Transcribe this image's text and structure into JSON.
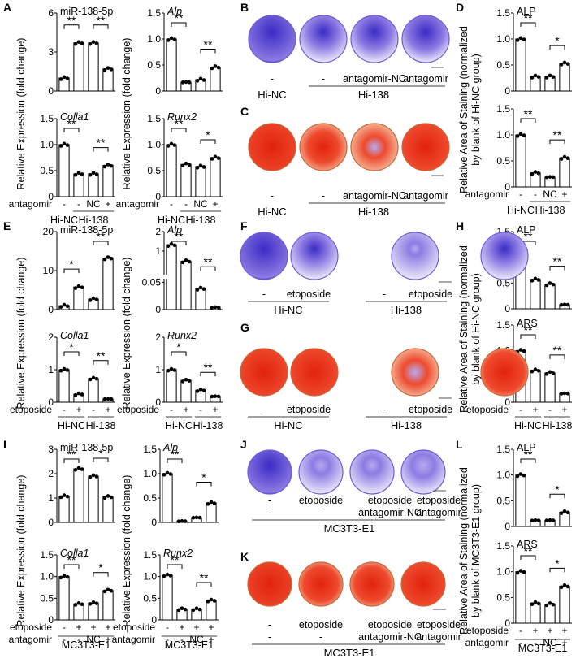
{
  "figure": {
    "panels": {
      "A": "A",
      "B": "B",
      "C": "C",
      "D": "D",
      "E": "E",
      "F": "F",
      "G": "G",
      "H": "H",
      "I": "I",
      "J": "J",
      "K": "K",
      "L": "L"
    },
    "ylabels": {
      "expression": "Relative Expression (fold change)",
      "staining_hinc_1": "Relative Area of Staining (normalized",
      "staining_hinc_2": "by blank of Hi-NC group)",
      "staining_mc3t3_1": "Relative Area of Staining (normalized",
      "staining_mc3t3_2": "by blank of MC3T3-E1 group)"
    },
    "colors": {
      "bar_fill": "#ffffff",
      "bar_stroke": "#000000",
      "alp_stain": "#5a3fd0",
      "ars_stain": "#e8321e",
      "ars_stain_light": "#f2c9a8"
    }
  },
  "chart_data": [
    {
      "panel": "A",
      "type": "bar",
      "title": "miR-138-5p",
      "ylim": [
        0,
        6
      ],
      "yticks": [
        "0",
        "3",
        "6"
      ],
      "categories": [
        "Hi-NC -",
        "Hi-138 -",
        "Hi-138 NC",
        "Hi-138 +"
      ],
      "values": [
        1.0,
        3.7,
        3.7,
        1.7
      ],
      "sig": [
        {
          "from": 0,
          "to": 1,
          "label": "**"
        },
        {
          "from": 2,
          "to": 3,
          "label": "**"
        }
      ]
    },
    {
      "panel": "A",
      "type": "bar",
      "title": "Alp",
      "ylim": [
        0,
        1.5
      ],
      "yticks": [
        "0",
        "0.5",
        "1.0",
        "1.5"
      ],
      "categories": [
        "Hi-NC -",
        "Hi-138 -",
        "Hi-138 NC",
        "Hi-138 +"
      ],
      "values": [
        1.0,
        0.17,
        0.22,
        0.46
      ],
      "sig": [
        {
          "from": 0,
          "to": 1,
          "label": "**"
        },
        {
          "from": 2,
          "to": 3,
          "label": "**"
        }
      ]
    },
    {
      "panel": "A",
      "type": "bar",
      "title": "Colla1",
      "ylim": [
        0,
        1.5
      ],
      "yticks": [
        "0",
        "0.5",
        "1.0",
        "1.5"
      ],
      "categories": [
        "Hi-NC -",
        "Hi-138 -",
        "Hi-138 NC",
        "Hi-138 +"
      ],
      "values": [
        1.0,
        0.44,
        0.44,
        0.6
      ],
      "sig": [
        {
          "from": 0,
          "to": 1,
          "label": "**"
        },
        {
          "from": 2,
          "to": 3,
          "label": "**"
        }
      ],
      "xrow": {
        "label": "antagomir",
        "values": [
          "-",
          "-",
          "NC",
          "+"
        ]
      },
      "groups": [
        {
          "label": "Hi-NC",
          "from": 0,
          "to": 0
        },
        {
          "label": "Hi-138",
          "from": 1,
          "to": 3
        }
      ]
    },
    {
      "panel": "A",
      "type": "bar",
      "title": "Runx2",
      "ylim": [
        0,
        1.5
      ],
      "yticks": [
        "0",
        "0.5",
        "1.0",
        "1.5"
      ],
      "categories": [
        "Hi-NC -",
        "Hi-138 -",
        "Hi-138 NC",
        "Hi-138 +"
      ],
      "values": [
        1.0,
        0.62,
        0.58,
        0.75
      ],
      "sig": [
        {
          "from": 0,
          "to": 1,
          "label": "**"
        },
        {
          "from": 2,
          "to": 3,
          "label": "*"
        }
      ],
      "xrow": {
        "label": "antagomir",
        "values": [
          "-",
          "-",
          "NC",
          "+"
        ]
      },
      "groups": [
        {
          "label": "Hi-NC",
          "from": 0,
          "to": 0
        },
        {
          "label": "Hi-138",
          "from": 1,
          "to": 3
        }
      ]
    },
    {
      "panel": "D",
      "type": "bar",
      "title": "ALP",
      "ylim": [
        0,
        1.5
      ],
      "yticks": [
        "0",
        "0.5",
        "1.0",
        "1.5"
      ],
      "categories": [
        "Hi-NC -",
        "Hi-138 -",
        "Hi-138 NC",
        "Hi-138 +"
      ],
      "values": [
        1.0,
        0.28,
        0.28,
        0.53
      ],
      "sig": [
        {
          "from": 0,
          "to": 1,
          "label": "**"
        },
        {
          "from": 2,
          "to": 3,
          "label": "*"
        }
      ]
    },
    {
      "panel": "D",
      "type": "bar",
      "title": "",
      "ylim": [
        0,
        1.5
      ],
      "yticks": [
        "0",
        "0.5",
        "1.0",
        "1.5"
      ],
      "categories": [
        "Hi-NC -",
        "Hi-138 -",
        "Hi-138 NC",
        "Hi-138 +"
      ],
      "values": [
        1.0,
        0.27,
        0.19,
        0.56
      ],
      "sig": [
        {
          "from": 0,
          "to": 1,
          "label": "**"
        },
        {
          "from": 2,
          "to": 3,
          "label": "**"
        }
      ],
      "xrow": {
        "label": "antagomir",
        "values": [
          "-",
          "-",
          "NC",
          "+"
        ]
      },
      "groups": [
        {
          "label": "Hi-NC",
          "from": 0,
          "to": 0
        },
        {
          "label": "Hi-138",
          "from": 1,
          "to": 3
        }
      ]
    },
    {
      "panel": "E",
      "type": "bar",
      "title": "miR-138-5p",
      "ylim": [
        0,
        20
      ],
      "yticks": [
        "0",
        "10",
        "20"
      ],
      "categories": [
        "Hi-NC -",
        "Hi-NC +",
        "Hi-138 -",
        "Hi-138 +"
      ],
      "values": [
        1.0,
        5.8,
        2.7,
        13.2
      ],
      "sig": [
        {
          "from": 0,
          "to": 1,
          "label": "*"
        },
        {
          "from": 2,
          "to": 3,
          "label": "**"
        }
      ]
    },
    {
      "panel": "E",
      "type": "bar",
      "title": "Alp",
      "broken_axis": true,
      "yticks": [
        "0",
        "0.05",
        "1",
        "2"
      ],
      "categories": [
        "Hi-NC -",
        "Hi-NC +",
        "Hi-138 -",
        "Hi-138 +"
      ],
      "values": [
        1.0,
        0.6,
        0.028,
        0.003
      ],
      "sig": [
        {
          "from": 0,
          "to": 1,
          "label": "**"
        },
        {
          "from": 2,
          "to": 3,
          "label": "**"
        }
      ]
    },
    {
      "panel": "E",
      "type": "bar",
      "title": "Colla1",
      "ylim": [
        0,
        2
      ],
      "yticks": [
        "0",
        "1",
        "2"
      ],
      "categories": [
        "Hi-NC -",
        "Hi-NC +",
        "Hi-138 -",
        "Hi-138 +"
      ],
      "values": [
        1.0,
        0.25,
        0.73,
        0.1
      ],
      "sig": [
        {
          "from": 0,
          "to": 1,
          "label": "*"
        },
        {
          "from": 2,
          "to": 3,
          "label": "**"
        }
      ],
      "xrow": {
        "label": "etoposide",
        "values": [
          "-",
          "+",
          "-",
          "+"
        ]
      },
      "groups": [
        {
          "label": "Hi-NC",
          "from": 0,
          "to": 1
        },
        {
          "label": "Hi-138",
          "from": 2,
          "to": 3
        }
      ]
    },
    {
      "panel": "E",
      "type": "bar",
      "title": "Runx2",
      "ylim": [
        0,
        2
      ],
      "yticks": [
        "0",
        "1",
        "2"
      ],
      "categories": [
        "Hi-NC -",
        "Hi-NC +",
        "Hi-138 -",
        "Hi-138 +"
      ],
      "values": [
        1.0,
        0.67,
        0.37,
        0.18
      ],
      "sig": [
        {
          "from": 0,
          "to": 1,
          "label": "*"
        },
        {
          "from": 2,
          "to": 3,
          "label": "**"
        }
      ],
      "xrow": {
        "label": "etoposide",
        "values": [
          "-",
          "+",
          "-",
          "+"
        ]
      },
      "groups": [
        {
          "label": "Hi-NC",
          "from": 0,
          "to": 1
        },
        {
          "label": "Hi-138",
          "from": 2,
          "to": 3
        }
      ]
    },
    {
      "panel": "H",
      "type": "bar",
      "title": "ALP",
      "ylim": [
        0,
        1.5
      ],
      "yticks": [
        "0",
        "0.5",
        "1.0",
        "1.5"
      ],
      "categories": [
        "Hi-NC -",
        "Hi-NC +",
        "Hi-138 -",
        "Hi-138 +"
      ],
      "values": [
        1.0,
        0.57,
        0.48,
        0.08
      ],
      "sig": [
        {
          "from": 0,
          "to": 1,
          "label": "**"
        },
        {
          "from": 2,
          "to": 3,
          "label": "**"
        }
      ]
    },
    {
      "panel": "H",
      "type": "bar",
      "title": "ARS",
      "ylim": [
        0,
        1.5
      ],
      "yticks": [
        "0",
        "0.5",
        "1.0",
        "1.5"
      ],
      "categories": [
        "Hi-NC -",
        "Hi-NC +",
        "Hi-138 -",
        "Hi-138 +"
      ],
      "values": [
        1.0,
        0.62,
        0.57,
        0.17
      ],
      "sig": [
        {
          "from": 0,
          "to": 1,
          "label": "**"
        },
        {
          "from": 2,
          "to": 3,
          "label": "**"
        }
      ],
      "xrow": {
        "label": "etoposide",
        "values": [
          "-",
          "+",
          "-",
          "+"
        ]
      },
      "groups": [
        {
          "label": "Hi-NC",
          "from": 0,
          "to": 1
        },
        {
          "label": "Hi-138",
          "from": 2,
          "to": 3
        }
      ]
    },
    {
      "panel": "I",
      "type": "bar",
      "title": "miR-138-5p",
      "ylim": [
        0,
        3
      ],
      "yticks": [
        "0",
        "1",
        "2",
        "3"
      ],
      "categories": [
        "-/-",
        "+/-",
        "+/NC",
        "+/+"
      ],
      "values": [
        1.08,
        2.2,
        1.9,
        1.05
      ],
      "sig": [
        {
          "from": 0,
          "to": 1,
          "label": "**"
        },
        {
          "from": 2,
          "to": 3,
          "label": "*"
        }
      ]
    },
    {
      "panel": "I",
      "type": "bar",
      "title": "Alp",
      "broken_axis": true,
      "ylim": [
        0,
        1.5
      ],
      "yticks": [
        "0",
        "0.5",
        "1.0",
        "1.5"
      ],
      "categories": [
        "-/-",
        "+/-",
        "+/NC",
        "+/+"
      ],
      "values": [
        1.0,
        0.02,
        0.1,
        0.4
      ],
      "sig": [
        {
          "from": 0,
          "to": 1,
          "label": "**"
        },
        {
          "from": 2,
          "to": 3,
          "label": "*"
        }
      ]
    },
    {
      "panel": "I",
      "type": "bar",
      "title": "Colla1",
      "ylim": [
        0,
        1.5
      ],
      "yticks": [
        "0",
        "0.5",
        "1.0",
        "1.5"
      ],
      "categories": [
        "-/-",
        "+/-",
        "+/NC",
        "+/+"
      ],
      "values": [
        1.0,
        0.37,
        0.39,
        0.68
      ],
      "sig": [
        {
          "from": 0,
          "to": 1,
          "label": "**"
        },
        {
          "from": 2,
          "to": 3,
          "label": "*"
        }
      ],
      "xrow": {
        "label": "etoposide",
        "values": [
          "-",
          "+",
          "+",
          "+"
        ]
      },
      "xrow2": {
        "label": "antagomir",
        "values": [
          "-",
          "-",
          "NC",
          "+"
        ]
      },
      "groups": [
        {
          "label": "MC3T3-E1",
          "from": 0,
          "to": 3
        }
      ]
    },
    {
      "panel": "I",
      "type": "bar",
      "title": "Runx2",
      "ylim": [
        0,
        1.5
      ],
      "yticks": [
        "0",
        "0.5",
        "1.0",
        "1.5"
      ],
      "categories": [
        "-/-",
        "+/-",
        "+/NC",
        "+/+"
      ],
      "values": [
        1.03,
        0.25,
        0.25,
        0.45
      ],
      "sig": [
        {
          "from": 0,
          "to": 1,
          "label": "**"
        },
        {
          "from": 2,
          "to": 3,
          "label": "**"
        }
      ],
      "xrow": {
        "label": "etoposide",
        "values": [
          "-",
          "+",
          "+",
          "+"
        ]
      },
      "xrow2": {
        "label": "antagomir",
        "values": [
          "-",
          "-",
          "NC",
          "+"
        ]
      },
      "groups": [
        {
          "label": "MC3T3-E1",
          "from": 0,
          "to": 3
        }
      ]
    },
    {
      "panel": "L",
      "type": "bar",
      "title": "ALP",
      "ylim": [
        0,
        1.5
      ],
      "yticks": [
        "0",
        "0.5",
        "1.0",
        "1.5"
      ],
      "categories": [
        "-/-",
        "+/-",
        "+/NC",
        "+/+"
      ],
      "values": [
        1.0,
        0.12,
        0.12,
        0.28
      ],
      "sig": [
        {
          "from": 0,
          "to": 1,
          "label": "**"
        },
        {
          "from": 2,
          "to": 3,
          "label": "*"
        }
      ]
    },
    {
      "panel": "L",
      "type": "bar",
      "title": "ARS",
      "ylim": [
        0,
        1.5
      ],
      "yticks": [
        "0",
        "0.5",
        "1.0",
        "1.5"
      ],
      "categories": [
        "-/-",
        "+/-",
        "+/NC",
        "+/+"
      ],
      "values": [
        1.0,
        0.39,
        0.37,
        0.72
      ],
      "sig": [
        {
          "from": 0,
          "to": 1,
          "label": "**"
        },
        {
          "from": 2,
          "to": 3,
          "label": "*"
        }
      ],
      "xrow": {
        "label": "etoposide",
        "values": [
          "-",
          "+",
          "+",
          "+"
        ]
      },
      "xrow2": {
        "label": "antagomir",
        "values": [
          "-",
          "-",
          "NC",
          "+"
        ]
      },
      "groups": [
        {
          "label": "MC3T3-E1",
          "from": 0,
          "to": 3
        }
      ]
    }
  ],
  "images": {
    "B": {
      "stain": "ALP",
      "wells": [
        {
          "intensity": 0.95
        },
        {
          "intensity": 0.5
        },
        {
          "intensity": 0.55
        },
        {
          "intensity": 0.6
        }
      ],
      "row1": [
        "-",
        "-",
        "antagomir-NC",
        "antagomir"
      ],
      "groups": [
        {
          "label": "Hi-NC"
        },
        {
          "label": "Hi-138"
        }
      ]
    },
    "C": {
      "stain": "ARS",
      "wells": [
        {
          "intensity": 0.95
        },
        {
          "intensity": 0.5
        },
        {
          "intensity": 0.35
        },
        {
          "intensity": 0.75
        }
      ],
      "row1": [
        "-",
        "-",
        "antagomir-NC",
        "antagomir"
      ],
      "groups": [
        {
          "label": "Hi-NC"
        },
        {
          "label": "Hi-138"
        }
      ]
    },
    "F": {
      "stain": "ALP",
      "wells": [
        {
          "intensity": 0.95
        },
        {
          "intensity": 0.45
        },
        {
          "intensity": 0.45
        },
        {
          "intensity": 0.2
        }
      ],
      "row1": [
        "-",
        "etoposide",
        "-",
        "etoposide"
      ],
      "groups": [
        {
          "label": "Hi-NC"
        },
        {
          "label": "Hi-138"
        }
      ]
    },
    "G": {
      "stain": "ARS",
      "wells": [
        {
          "intensity": 0.85
        },
        {
          "intensity": 0.8
        },
        {
          "intensity": 0.65
        },
        {
          "intensity": 0.4
        }
      ],
      "row1": [
        "-",
        "etoposide",
        "-",
        "etoposide"
      ],
      "groups": [
        {
          "label": "Hi-NC"
        },
        {
          "label": "Hi-138"
        }
      ]
    },
    "J": {
      "stain": "ALP",
      "wells": [
        {
          "intensity": 0.95
        },
        {
          "intensity": 0.3
        },
        {
          "intensity": 0.3
        },
        {
          "intensity": 0.4
        }
      ],
      "row1": [
        "-",
        "etoposide",
        "etoposide",
        "etoposide"
      ],
      "row2": [
        "-",
        "-",
        "antagomir-NC",
        "antagomir"
      ],
      "groups": [
        {
          "label": "MC3T3-E1"
        }
      ]
    },
    "K": {
      "stain": "ARS",
      "wells": [
        {
          "intensity": 0.98
        },
        {
          "intensity": 0.6
        },
        {
          "intensity": 0.6
        },
        {
          "intensity": 0.75
        }
      ],
      "row1": [
        "-",
        "etoposide",
        "etoposide",
        "etoposide"
      ],
      "row2": [
        "-",
        "-",
        "antagomir-NC",
        "antagomir"
      ],
      "groups": [
        {
          "label": "MC3T3-E1"
        }
      ]
    }
  }
}
